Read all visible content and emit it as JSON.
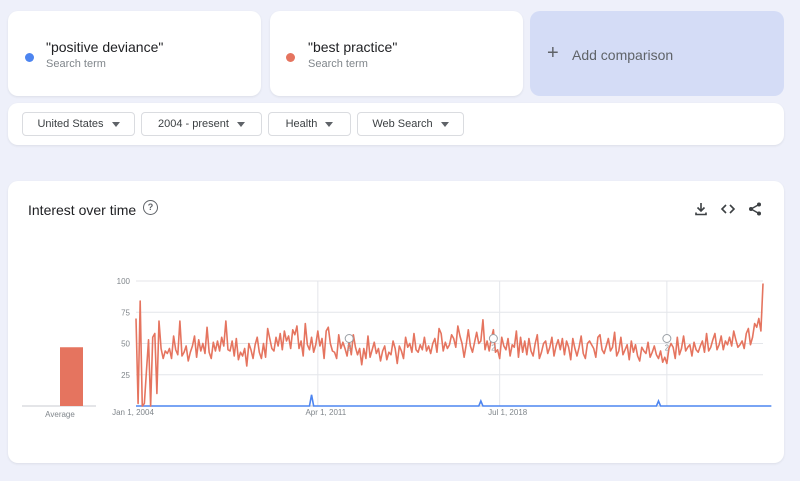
{
  "terms": [
    {
      "name": "\"positive deviance\"",
      "sub": "Search term",
      "color": "#4d85f0"
    },
    {
      "name": "\"best practice\"",
      "sub": "Search term",
      "color": "#e5745f"
    }
  ],
  "add_comparison": {
    "plus": "+",
    "label": "Add comparison"
  },
  "filters": {
    "region": "United States",
    "time": "2004 - present",
    "category": "Health",
    "search_type": "Web Search"
  },
  "chart_card": {
    "title": "Interest over time",
    "help_icon": "?",
    "icons": [
      "download-icon",
      "embed-icon",
      "share-icon"
    ]
  },
  "chart_data": {
    "type": "line",
    "y_ticks": [
      "100",
      "75",
      "50",
      "25"
    ],
    "ylim": [
      0,
      100
    ],
    "x_tick_labels": [
      "Jan 1, 2004",
      "Apr 1, 2011",
      "Jul 1, 2018"
    ],
    "x_range": [
      "2004-01",
      "2023-12"
    ],
    "grid": true,
    "average": {
      "label": "Average",
      "series": [
        {
          "color": "#4d85f0",
          "value": 0
        },
        {
          "color": "#e5745f",
          "value": 47
        }
      ]
    },
    "annotation_marker": "2",
    "series": [
      {
        "color": "#e5745f",
        "values": [
          70,
          2,
          84,
          0,
          2,
          28,
          53,
          0,
          55,
          58,
          10,
          68,
          46,
          38,
          44,
          42,
          46,
          38,
          56,
          45,
          41,
          68,
          40,
          43,
          48,
          36,
          43,
          48,
          56,
          39,
          53,
          44,
          50,
          42,
          63,
          43,
          38,
          51,
          44,
          52,
          44,
          55,
          48,
          68,
          45,
          44,
          52,
          40,
          54,
          37,
          43,
          40,
          46,
          32,
          50,
          45,
          38,
          49,
          55,
          43,
          38,
          50,
          39,
          62,
          54,
          46,
          44,
          55,
          48,
          58,
          45,
          60,
          52,
          56,
          46,
          61,
          57,
          64,
          46,
          52,
          40,
          66,
          49,
          45,
          55,
          43,
          49,
          60,
          48,
          54,
          38,
          60,
          63,
          50,
          44,
          43,
          38,
          57,
          46,
          51,
          46,
          40,
          52,
          41,
          57,
          47,
          41,
          46,
          33,
          46,
          38,
          56,
          39,
          45,
          51,
          42,
          46,
          36,
          44,
          48,
          37,
          43,
          41,
          52,
          46,
          34,
          48,
          44,
          38,
          55,
          47,
          50,
          43,
          58,
          45,
          43,
          49,
          45,
          55,
          44,
          48,
          42,
          50,
          54,
          43,
          62,
          58,
          44,
          51,
          46,
          49,
          57,
          54,
          47,
          64,
          56,
          50,
          39,
          49,
          61,
          48,
          43,
          51,
          59,
          50,
          52,
          69,
          45,
          52,
          44,
          54,
          61,
          43,
          45,
          38,
          55,
          48,
          45,
          54,
          40,
          49,
          47,
          60,
          39,
          55,
          43,
          52,
          41,
          54,
          44,
          40,
          50,
          57,
          38,
          43,
          50,
          52,
          42,
          47,
          55,
          40,
          48,
          53,
          45,
          54,
          41,
          52,
          47,
          37,
          54,
          46,
          40,
          47,
          56,
          42,
          38,
          50,
          52,
          49,
          46,
          39,
          55,
          57,
          45,
          42,
          48,
          54,
          44,
          47,
          59,
          40,
          44,
          55,
          41,
          45,
          49,
          37,
          52,
          43,
          49,
          40,
          36,
          47,
          44,
          42,
          51,
          39,
          43,
          48,
          41,
          38,
          44,
          35,
          39,
          34,
          46,
          50,
          47,
          38,
          55,
          41,
          46,
          56,
          44,
          47,
          49,
          40,
          51,
          45,
          43,
          48,
          52,
          43,
          58,
          44,
          47,
          53,
          58,
          45,
          49,
          56,
          45,
          52,
          49,
          55,
          48,
          60,
          53,
          47,
          49,
          52,
          46,
          58,
          62,
          49,
          55,
          66,
          63,
          70,
          60,
          98
        ]
      },
      {
        "color": "#4d85f0",
        "values": [
          0,
          0,
          0,
          0,
          0,
          0,
          0,
          0,
          0,
          0,
          0,
          0,
          0,
          0,
          0,
          0,
          0,
          0,
          0,
          0,
          0,
          0,
          0,
          0,
          0,
          0,
          0,
          0,
          0,
          0,
          0,
          0,
          0,
          0,
          0,
          0,
          0,
          0,
          0,
          0,
          0,
          0,
          0,
          0,
          0,
          0,
          0,
          0,
          0,
          0,
          0,
          0,
          0,
          0,
          0,
          0,
          0,
          0,
          0,
          0,
          0,
          0,
          0,
          0,
          0,
          0,
          0,
          0,
          0,
          0,
          0,
          0,
          0,
          0,
          0,
          0,
          0,
          0,
          0,
          0,
          0,
          0,
          0,
          0,
          0,
          0,
          0,
          0,
          0,
          0,
          0,
          0,
          0,
          0,
          0,
          0,
          0,
          0,
          0,
          0,
          0,
          0,
          0,
          0,
          0,
          0,
          0,
          0,
          0,
          0,
          0,
          0,
          0,
          0,
          0,
          0,
          0,
          0,
          0,
          0,
          0,
          0,
          0,
          0,
          0,
          0,
          0,
          0,
          0,
          0,
          0,
          0,
          0,
          0,
          0,
          0,
          0,
          0,
          0,
          0,
          0,
          0,
          0,
          0,
          0,
          0,
          0,
          0,
          0,
          0,
          0,
          0,
          0,
          0,
          0,
          0,
          0,
          0,
          0,
          0,
          0,
          0,
          0,
          0,
          0,
          0,
          0,
          0,
          0,
          0,
          0,
          0,
          0,
          0,
          0,
          0,
          0,
          0,
          0,
          0,
          0,
          0,
          0,
          0,
          0,
          0,
          0,
          0,
          0,
          0,
          0,
          0,
          0,
          0,
          0,
          0,
          0,
          0,
          0,
          0,
          0,
          0,
          0,
          0,
          0,
          0,
          0,
          0,
          0,
          0,
          0,
          0,
          0,
          0,
          0,
          0,
          0,
          0,
          0,
          0,
          0,
          0,
          0,
          0,
          0,
          0,
          0,
          0,
          0,
          0,
          0,
          0,
          0,
          0,
          0,
          0,
          0,
          0,
          0,
          0,
          0,
          0,
          0,
          0,
          0,
          0,
          0,
          0,
          0,
          0,
          0,
          0,
          0,
          0,
          0,
          0,
          0,
          0,
          0,
          0,
          0,
          0,
          0,
          0,
          0,
          0,
          0,
          0,
          0,
          0,
          0,
          0,
          0,
          0,
          0,
          0,
          0,
          0,
          0,
          0,
          0,
          0,
          0,
          0,
          0,
          0,
          0,
          0,
          0,
          0,
          0,
          0,
          0,
          0,
          0,
          0,
          0,
          0,
          0,
          0,
          0,
          0,
          0,
          0,
          0
        ]
      }
    ],
    "spikes": [
      {
        "series": 1,
        "index": 84,
        "value": 9
      },
      {
        "series": 1,
        "index": 165,
        "value": 4
      },
      {
        "series": 1,
        "index": 250,
        "value": 4
      }
    ],
    "annotations_at": [
      102,
      171,
      254
    ]
  }
}
